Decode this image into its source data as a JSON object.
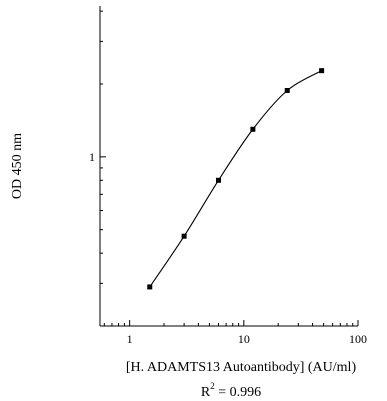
{
  "chart_data": {
    "type": "scatter",
    "title": "",
    "xlabel": "[H. ADAMTS13 Autoantibody] (AU/ml)",
    "ylabel": "OD 450 nm",
    "x_scale": "log",
    "y_scale": "log",
    "xlim": [
      0.55,
      100
    ],
    "ylim": [
      0.2,
      4.2
    ],
    "x_ticks": [
      1,
      10,
      100
    ],
    "x_tick_labels": [
      "1",
      "10",
      "100"
    ],
    "y_ticks": [
      1
    ],
    "y_tick_labels": [
      "1"
    ],
    "grid": false,
    "legend": "none",
    "series": [
      {
        "x": [
          1.5,
          3,
          6,
          12,
          24,
          48
        ],
        "y": [
          0.29,
          0.47,
          0.8,
          1.3,
          1.88,
          2.27
        ],
        "marker": "square",
        "line": "smooth",
        "color": "#000000"
      }
    ],
    "annotations": [
      {
        "text": "R",
        "superscript": "2",
        "suffix": " = 0.996",
        "position": "below-xlabel"
      }
    ]
  }
}
